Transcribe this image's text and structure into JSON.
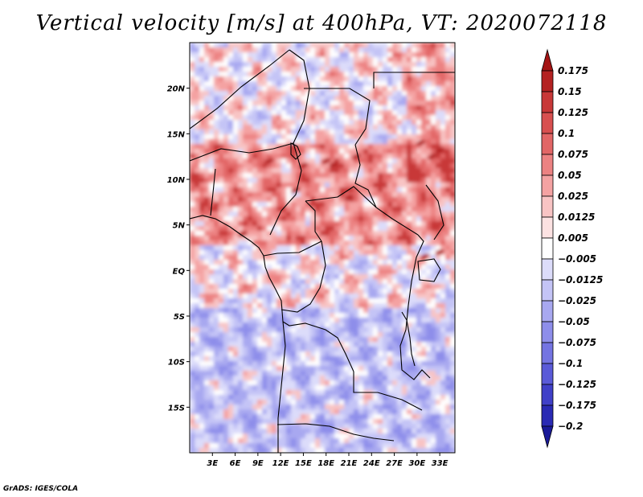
{
  "title": "Vertical velocity [m/s] at 400hPa, VT: 2020072118",
  "credit": "GrADS: IGES/COLA",
  "map": {
    "lon_range": [
      0,
      35
    ],
    "lat_range": [
      -20,
      25
    ],
    "lat_ticks": [
      {
        "lat": 20,
        "label": "20N"
      },
      {
        "lat": 15,
        "label": "15N"
      },
      {
        "lat": 10,
        "label": "10N"
      },
      {
        "lat": 5,
        "label": "5N"
      },
      {
        "lat": 0,
        "label": "EQ"
      },
      {
        "lat": -5,
        "label": "5S"
      },
      {
        "lat": -10,
        "label": "10S"
      },
      {
        "lat": -15,
        "label": "15S"
      }
    ],
    "lon_ticks": [
      {
        "lon": 3,
        "label": "3E"
      },
      {
        "lon": 6,
        "label": "6E"
      },
      {
        "lon": 9,
        "label": "9E"
      },
      {
        "lon": 12,
        "label": "12E"
      },
      {
        "lon": 15,
        "label": "15E"
      },
      {
        "lon": 18,
        "label": "18E"
      },
      {
        "lon": 21,
        "label": "21E"
      },
      {
        "lon": 24,
        "label": "24E"
      },
      {
        "lon": 27,
        "label": "27E"
      },
      {
        "lon": 30,
        "label": "30E"
      },
      {
        "lon": 33,
        "label": "33E"
      }
    ]
  },
  "colorbar": {
    "levels": [
      "0.175",
      "0.15",
      "0.125",
      "0.1",
      "0.075",
      "0.05",
      "0.025",
      "0.0125",
      "0.005",
      "−0.005",
      "−0.0125",
      "−0.025",
      "−0.05",
      "−0.075",
      "−0.1",
      "−0.125",
      "−0.175",
      "−0.2"
    ],
    "colors": [
      "#a41414",
      "#b42222",
      "#c83838",
      "#d85050",
      "#e26666",
      "#ec8282",
      "#f4a2a2",
      "#f8c4c4",
      "#fce2e2",
      "#ffffff",
      "#dcdcfa",
      "#c4c4f6",
      "#a8a8f0",
      "#8e8eea",
      "#7474e2",
      "#5a5ad8",
      "#4040c8",
      "#2a2ab4",
      "#1a1a98"
    ]
  }
}
